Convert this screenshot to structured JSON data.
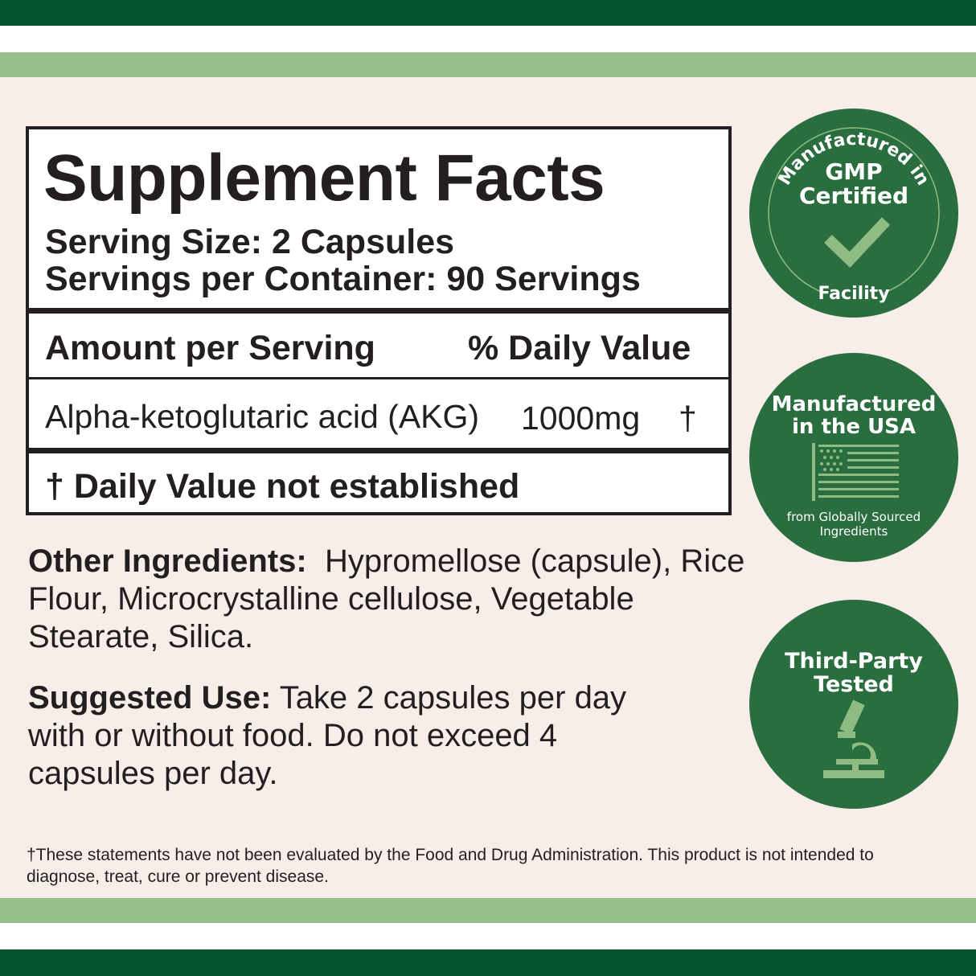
{
  "colors": {
    "dark_green": "#02552f",
    "light_green": "#95c08a",
    "background": "#f8eee9",
    "badge_green": "#2a6e40",
    "icon_green": "#8fbc82"
  },
  "facts": {
    "title": "Supplement Facts",
    "serving_size": "Serving Size: 2 Capsules",
    "servings_per_container": "Servings per Container: 90 Servings",
    "amount_header": "Amount per Serving",
    "dv_header": "% Daily Value",
    "ingredient": {
      "name": "Alpha-ketoglutaric acid (AKG)",
      "amount": "1000mg",
      "dv": "†"
    },
    "footnote": "† Daily Value not established"
  },
  "other_ingredients": {
    "label": "Other Ingredients:",
    "text": "Hypromellose (capsule), Rice Flour, Microcrystalline cellulose, Vegetable Stearate, Silica."
  },
  "suggested_use": {
    "label": "Suggested Use:",
    "text": "Take 2 capsules per day with or without food. Do not exceed 4 capsules per day."
  },
  "disclaimer": "†These statements have not been evaluated by the Food and Drug Administration. This product is not intended to diagnose, treat, cure or prevent disease.",
  "badges": {
    "gmp": {
      "arc_top": "Manufactured in",
      "line1": "GMP",
      "line2": "Certified",
      "arc_bottom": "Facility",
      "icon": "checkmark-icon"
    },
    "usa": {
      "line1": "Manufactured",
      "line2": "in the USA",
      "sub1": "from Globally Sourced",
      "sub2": "Ingredients",
      "icon": "us-flag-icon"
    },
    "tested": {
      "line1": "Third-Party",
      "line2": "Tested",
      "icon": "microscope-icon"
    }
  }
}
